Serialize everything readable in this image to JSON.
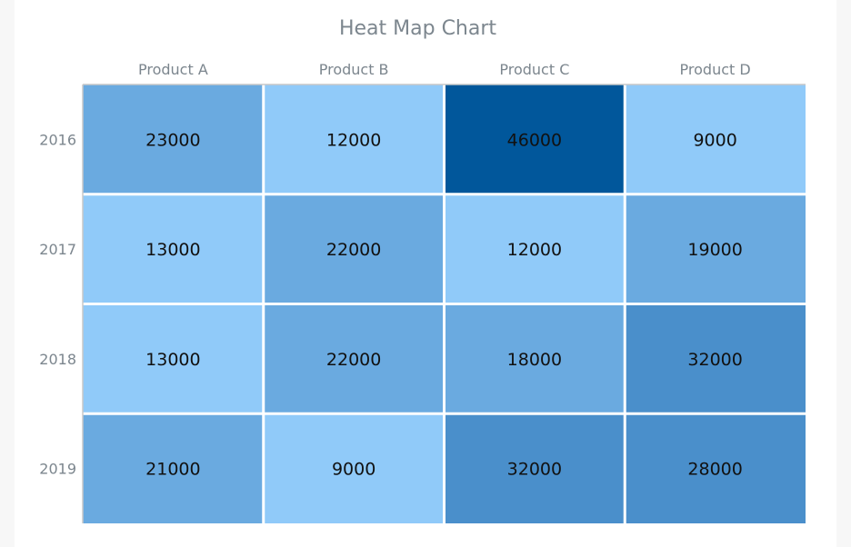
{
  "chart_data": {
    "type": "heatmap",
    "title": "Heat Map Chart",
    "x_categories": [
      "Product A",
      "Product B",
      "Product C",
      "Product D"
    ],
    "y_categories": [
      "2016",
      "2017",
      "2018",
      "2019"
    ],
    "values": [
      [
        23000,
        12000,
        46000,
        9000
      ],
      [
        13000,
        22000,
        12000,
        19000
      ],
      [
        13000,
        22000,
        18000,
        32000
      ],
      [
        21000,
        9000,
        32000,
        28000
      ]
    ],
    "color_scale": [
      {
        "max": 14000,
        "color": "#90caf9"
      },
      {
        "max": 24000,
        "color": "#6aaae0"
      },
      {
        "max": 40000,
        "color": "#4a8fcb"
      },
      {
        "max": 50000,
        "color": "#01579b"
      }
    ],
    "x_axis_position": "top",
    "legend": "none"
  }
}
